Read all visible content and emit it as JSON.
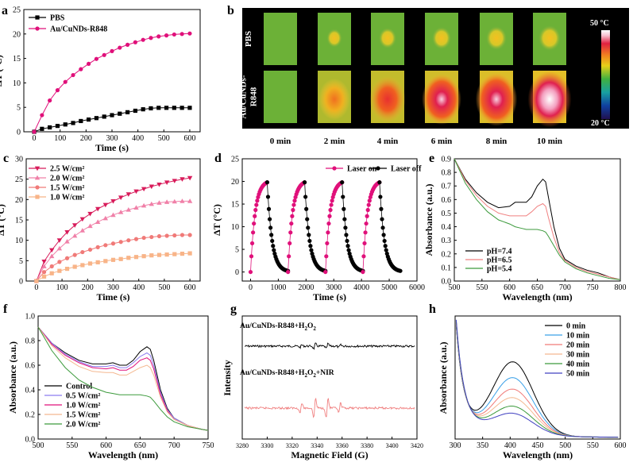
{
  "colors": {
    "black": "#000000",
    "pink": "#e0107a",
    "c25": "#d81b5a",
    "c20": "#f080a8",
    "c15": "#f07a78",
    "c10": "#f8b488",
    "green": "#3c9a3c",
    "blue": "#4040c0",
    "lightblue": "#3aa0e8",
    "salmon": "#f08080",
    "peach": "#f4b890",
    "lavender": "#8c7cf0"
  },
  "panels": {
    "a": "a",
    "b": "b",
    "c": "c",
    "d": "d",
    "e": "e",
    "f": "f",
    "g": "g",
    "h": "h"
  },
  "chart_data": [
    {
      "id": "a",
      "type": "line",
      "xlabel": "Time (s)",
      "ylabel": "ΔT (°C)",
      "xlim": [
        -40,
        640
      ],
      "ylim": [
        0,
        25
      ],
      "xticks": [
        0,
        100,
        200,
        300,
        400,
        500,
        600
      ],
      "yticks": [
        0,
        5,
        10,
        15,
        20,
        25
      ],
      "series": [
        {
          "name": "PBS",
          "color": "#000000",
          "marker": "square",
          "x": [
            0,
            30,
            60,
            90,
            120,
            150,
            180,
            210,
            240,
            270,
            300,
            330,
            360,
            390,
            420,
            450,
            480,
            510,
            540,
            570,
            600
          ],
          "y": [
            0,
            0.6,
            0.9,
            1.2,
            1.5,
            1.8,
            2.2,
            2.5,
            2.8,
            3.1,
            3.4,
            3.7,
            4.0,
            4.3,
            4.6,
            4.8,
            4.9,
            4.9,
            4.9,
            4.9,
            4.9
          ]
        },
        {
          "name": "Au/CuNDs-R848",
          "color": "#e0107a",
          "marker": "circle",
          "x": [
            0,
            30,
            60,
            90,
            120,
            150,
            180,
            210,
            240,
            270,
            300,
            330,
            360,
            390,
            420,
            450,
            480,
            510,
            540,
            570,
            600
          ],
          "y": [
            0,
            3.4,
            6.4,
            8.5,
            10.2,
            11.6,
            12.8,
            13.9,
            14.9,
            15.7,
            16.5,
            17.2,
            17.8,
            18.3,
            18.8,
            19.2,
            19.5,
            19.7,
            19.9,
            20.0,
            20.1
          ]
        }
      ]
    },
    {
      "id": "b",
      "type": "heatmap",
      "rows": [
        "PBS",
        "Au/CuNDs-R848"
      ],
      "rows_display": [
        [
          "PBS"
        ],
        [
          "Au/CuNDs-",
          "R848"
        ]
      ],
      "columns": [
        "0 min",
        "2 min",
        "4 min",
        "6 min",
        "8 min",
        "10 min"
      ],
      "temperature_intensity": [
        [
          0.0,
          0.08,
          0.15,
          0.2,
          0.25,
          0.3
        ],
        [
          0.0,
          0.55,
          0.7,
          0.82,
          0.9,
          0.97
        ]
      ],
      "colorbar": {
        "max_label": "50 °C",
        "min_label": "20 °C",
        "range": [
          20,
          50
        ]
      }
    },
    {
      "id": "c",
      "type": "line",
      "xlabel": "Time (s)",
      "ylabel": "ΔT (°C)",
      "xlim": [
        -40,
        640
      ],
      "ylim": [
        0,
        30
      ],
      "xticks": [
        0,
        100,
        200,
        300,
        400,
        500,
        600
      ],
      "yticks": [
        0,
        5,
        10,
        15,
        20,
        25,
        30
      ],
      "series": [
        {
          "name": "2.5 W/cm²",
          "color": "#d81b5a",
          "marker": "triangle-down",
          "x": [
            0,
            30,
            60,
            90,
            120,
            150,
            180,
            210,
            240,
            270,
            300,
            330,
            360,
            390,
            420,
            450,
            480,
            510,
            540,
            570,
            600
          ],
          "y": [
            0,
            4.8,
            7.6,
            10.0,
            12.0,
            13.7,
            15.2,
            16.5,
            17.7,
            18.7,
            19.6,
            20.5,
            21.3,
            22.0,
            22.6,
            23.2,
            23.7,
            24.2,
            24.6,
            25.0,
            25.3
          ]
        },
        {
          "name": "2.0 W/cm²",
          "color": "#f080a8",
          "marker": "triangle-up",
          "x": [
            0,
            30,
            60,
            90,
            120,
            150,
            180,
            210,
            240,
            270,
            300,
            330,
            360,
            390,
            420,
            450,
            480,
            510,
            540,
            570,
            600
          ],
          "y": [
            0,
            3.6,
            6.1,
            8.0,
            9.7,
            11.1,
            12.4,
            13.5,
            14.5,
            15.4,
            16.2,
            16.9,
            17.5,
            18.0,
            18.5,
            18.9,
            19.2,
            19.4,
            19.5,
            19.6,
            19.6
          ]
        },
        {
          "name": "1.5 W/cm²",
          "color": "#f07a78",
          "marker": "circle",
          "x": [
            0,
            30,
            60,
            90,
            120,
            150,
            180,
            210,
            240,
            270,
            300,
            330,
            360,
            390,
            420,
            450,
            480,
            510,
            540,
            570,
            600
          ],
          "y": [
            0,
            2.2,
            3.6,
            4.7,
            5.6,
            6.4,
            7.1,
            7.7,
            8.3,
            8.8,
            9.2,
            9.6,
            10.0,
            10.3,
            10.6,
            10.8,
            11.0,
            11.1,
            11.2,
            11.3,
            11.3
          ]
        },
        {
          "name": "1.0 W/cm²",
          "color": "#f8b488",
          "marker": "square",
          "x": [
            0,
            30,
            60,
            90,
            120,
            150,
            180,
            210,
            240,
            270,
            300,
            330,
            360,
            390,
            420,
            450,
            480,
            510,
            540,
            570,
            600
          ],
          "y": [
            0,
            1.1,
            1.9,
            2.5,
            3.0,
            3.5,
            3.9,
            4.3,
            4.6,
            4.9,
            5.2,
            5.4,
            5.7,
            5.9,
            6.1,
            6.3,
            6.4,
            6.5,
            6.6,
            6.7,
            6.8
          ]
        }
      ]
    },
    {
      "id": "d",
      "type": "line",
      "xlabel": "Time (s)",
      "ylabel": "ΔT (°C)",
      "xlim": [
        -300,
        6000
      ],
      "ylim": [
        -2,
        25
      ],
      "xticks": [
        0,
        1000,
        2000,
        3000,
        4000,
        5000,
        6000
      ],
      "yticks": [
        0,
        5,
        10,
        15,
        20,
        25
      ],
      "cycles": 4,
      "cycle_period_s": 1350,
      "on_duration_s": 600,
      "peak": 19.8,
      "series": [
        {
          "name": "Laser on",
          "color": "#e0107a",
          "marker": "circle"
        },
        {
          "name": "Laser off",
          "color": "#000000",
          "marker": "circle"
        }
      ]
    },
    {
      "id": "e",
      "type": "line",
      "xlabel": "Wavelength (nm)",
      "ylabel": "Absorbance (a.u.)",
      "xlim": [
        500,
        800
      ],
      "ylim": [
        0,
        0.9
      ],
      "xticks": [
        500,
        550,
        600,
        650,
        700,
        750,
        800
      ],
      "yticks": [
        0.0,
        0.1,
        0.2,
        0.3,
        0.4,
        0.5,
        0.6,
        0.7,
        0.8,
        0.9
      ],
      "series": [
        {
          "name": "pH=7.4",
          "color": "#000000",
          "x": [
            500,
            520,
            540,
            560,
            580,
            600,
            610,
            620,
            630,
            640,
            650,
            660,
            665,
            670,
            680,
            690,
            700,
            720,
            740,
            760,
            780,
            800
          ],
          "y": [
            0.9,
            0.75,
            0.65,
            0.58,
            0.54,
            0.55,
            0.58,
            0.58,
            0.58,
            0.62,
            0.7,
            0.75,
            0.73,
            0.62,
            0.4,
            0.24,
            0.16,
            0.11,
            0.08,
            0.06,
            0.03,
            0.01
          ]
        },
        {
          "name": "pH=6.5",
          "color": "#f08080",
          "x": [
            500,
            520,
            540,
            560,
            580,
            600,
            610,
            620,
            630,
            640,
            650,
            660,
            665,
            670,
            680,
            690,
            700,
            720,
            740,
            760,
            780,
            800
          ],
          "y": [
            0.9,
            0.74,
            0.63,
            0.55,
            0.5,
            0.48,
            0.48,
            0.48,
            0.48,
            0.51,
            0.55,
            0.57,
            0.55,
            0.47,
            0.32,
            0.21,
            0.15,
            0.1,
            0.07,
            0.05,
            0.03,
            0.01
          ]
        },
        {
          "name": "pH=5.4",
          "color": "#3c9a3c",
          "x": [
            500,
            520,
            540,
            560,
            580,
            600,
            610,
            620,
            630,
            640,
            650,
            660,
            665,
            670,
            680,
            690,
            700,
            720,
            740,
            760,
            780,
            800
          ],
          "y": [
            0.9,
            0.72,
            0.6,
            0.51,
            0.45,
            0.42,
            0.4,
            0.39,
            0.38,
            0.38,
            0.38,
            0.37,
            0.36,
            0.33,
            0.26,
            0.19,
            0.14,
            0.09,
            0.06,
            0.04,
            0.02,
            0.01
          ]
        }
      ]
    },
    {
      "id": "f",
      "type": "line",
      "xlabel": "Wavelength (nm)",
      "ylabel": "Absorbance (a.u.)",
      "xlim": [
        500,
        750
      ],
      "ylim": [
        0,
        1.0
      ],
      "xticks": [
        500,
        550,
        600,
        650,
        700,
        750
      ],
      "yticks": [
        0.0,
        0.2,
        0.4,
        0.6,
        0.8,
        1.0
      ],
      "series": [
        {
          "name": "Control",
          "color": "#000000",
          "x": [
            500,
            520,
            540,
            560,
            580,
            600,
            610,
            620,
            630,
            640,
            650,
            660,
            665,
            670,
            680,
            690,
            700,
            720,
            740,
            750
          ],
          "y": [
            0.91,
            0.78,
            0.7,
            0.64,
            0.61,
            0.61,
            0.62,
            0.6,
            0.6,
            0.64,
            0.71,
            0.75,
            0.73,
            0.64,
            0.4,
            0.25,
            0.17,
            0.11,
            0.08,
            0.07
          ]
        },
        {
          "name": "0.5 W/cm²",
          "color": "#8c7cf0",
          "x": [
            500,
            520,
            540,
            560,
            580,
            600,
            610,
            620,
            630,
            640,
            650,
            660,
            665,
            670,
            680,
            690,
            700,
            720,
            740,
            750
          ],
          "y": [
            0.91,
            0.78,
            0.69,
            0.63,
            0.59,
            0.59,
            0.6,
            0.58,
            0.58,
            0.62,
            0.67,
            0.7,
            0.68,
            0.6,
            0.38,
            0.24,
            0.17,
            0.11,
            0.08,
            0.07
          ]
        },
        {
          "name": "1.0 W/cm²",
          "color": "#e0107a",
          "x": [
            500,
            520,
            540,
            560,
            580,
            600,
            610,
            620,
            630,
            640,
            650,
            660,
            665,
            670,
            680,
            690,
            700,
            720,
            740,
            750
          ],
          "y": [
            0.91,
            0.77,
            0.68,
            0.62,
            0.58,
            0.57,
            0.58,
            0.56,
            0.56,
            0.59,
            0.64,
            0.66,
            0.64,
            0.57,
            0.36,
            0.23,
            0.16,
            0.11,
            0.08,
            0.07
          ]
        },
        {
          "name": "1.5 W/cm²",
          "color": "#f4b890",
          "x": [
            500,
            520,
            540,
            560,
            580,
            600,
            610,
            620,
            630,
            640,
            650,
            660,
            665,
            670,
            680,
            690,
            700,
            720,
            740,
            750
          ],
          "y": [
            0.91,
            0.76,
            0.66,
            0.59,
            0.55,
            0.54,
            0.54,
            0.52,
            0.52,
            0.55,
            0.58,
            0.6,
            0.58,
            0.52,
            0.34,
            0.22,
            0.16,
            0.11,
            0.08,
            0.07
          ]
        },
        {
          "name": "2.0 W/cm²",
          "color": "#3c9a3c",
          "x": [
            500,
            520,
            540,
            560,
            580,
            600,
            610,
            620,
            630,
            640,
            650,
            660,
            665,
            670,
            680,
            690,
            700,
            720,
            740,
            750
          ],
          "y": [
            0.91,
            0.72,
            0.58,
            0.48,
            0.42,
            0.38,
            0.37,
            0.36,
            0.36,
            0.36,
            0.36,
            0.35,
            0.34,
            0.31,
            0.24,
            0.18,
            0.14,
            0.1,
            0.08,
            0.07
          ]
        }
      ]
    },
    {
      "id": "g",
      "type": "line",
      "xlabel": "Magnetic Field (G)",
      "ylabel": "Intensity",
      "xlim": [
        3280,
        3420
      ],
      "xticks": [
        3280,
        3300,
        3320,
        3340,
        3360,
        3380,
        3400,
        3420
      ],
      "traces": [
        {
          "name": "Au/CuNDs-R848+H₂O₂",
          "name_main": "Au/CuNDs-R848+H",
          "name_tail": "O",
          "color": "#000000",
          "peaks_G": [
            3327,
            3338,
            3348,
            3358
          ],
          "relative_amplitude": [
            0.5,
            1.0,
            1.0,
            0.5
          ],
          "amplitude": 0.25
        },
        {
          "name": "Au/CuNDs-R848+H₂O₂+NIR",
          "name_main": "Au/CuNDs-R848+H",
          "name_mid": "O",
          "name_tail": "+NIR",
          "color": "#f08080",
          "peaks_G": [
            3327,
            3338,
            3348,
            3358
          ],
          "relative_amplitude": [
            0.5,
            1.0,
            1.0,
            0.5
          ],
          "amplitude": 1.0
        }
      ]
    },
    {
      "id": "h",
      "type": "line",
      "xlabel": "Wavelength (nm)",
      "ylabel": "Absorbance (a.u.)",
      "xlim": [
        300,
        600
      ],
      "xticks": [
        300,
        350,
        400,
        450,
        500,
        550,
        600
      ],
      "series": [
        {
          "name": "0  min",
          "color": "#000000",
          "peak": 1.0
        },
        {
          "name": "10 min",
          "color": "#3aa0e8",
          "peak": 0.78
        },
        {
          "name": "20 min",
          "color": "#f07a78",
          "peak": 0.62
        },
        {
          "name": "30 min",
          "color": "#f4b890",
          "peak": 0.5
        },
        {
          "name": "40 min",
          "color": "#3c9a3c",
          "peak": 0.38
        },
        {
          "name": "50 min",
          "color": "#4040c0",
          "peak": 0.28
        }
      ]
    }
  ]
}
